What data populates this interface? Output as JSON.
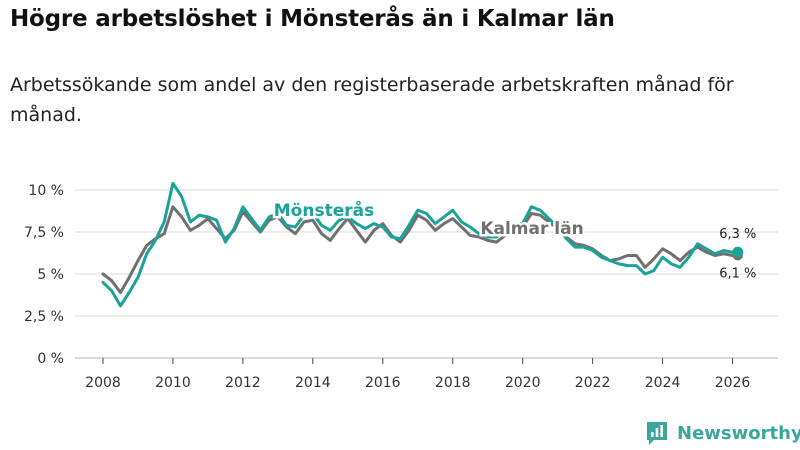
{
  "title": "Högre arbetslöshet i Mönsterås än i Kalmar län",
  "subtitle": "Arbetssökande som andel av den registerbaserade arbetskraften månad för månad.",
  "brand": {
    "name": "Newsworthy",
    "icon": "newsworthy-logo-icon",
    "color": "#3aa79a"
  },
  "chart_data": {
    "type": "line",
    "title": "Högre arbetslöshet i Mönsterås än i Kalmar län",
    "subtitle": "Arbetssökande som andel av den registerbaserade arbetskraften månad för månad.",
    "xlabel": "",
    "ylabel": "",
    "xlim": [
      2007.2,
      2027.3
    ],
    "ylim": [
      0,
      10
    ],
    "grid": true,
    "x_ticks": [
      2008,
      2010,
      2012,
      2014,
      2016,
      2018,
      2020,
      2022,
      2024,
      2026
    ],
    "x_tick_labels": [
      "2008",
      "2010",
      "2012",
      "2014",
      "2016",
      "2018",
      "2020",
      "2022",
      "2024",
      "2026"
    ],
    "y_ticks": [
      0,
      2.5,
      5,
      7.5,
      10
    ],
    "y_tick_labels": [
      "0 %",
      "2,5 %",
      "5 %",
      "7,5 %",
      "10 %"
    ],
    "series": [
      {
        "name": "Kalmar län",
        "color": "#707070",
        "label": "Kalmar län",
        "end_label": "6,1 %",
        "points": [
          [
            2008.0,
            5.0
          ],
          [
            2008.25,
            4.6
          ],
          [
            2008.5,
            3.9
          ],
          [
            2008.75,
            4.8
          ],
          [
            2009.0,
            5.8
          ],
          [
            2009.25,
            6.7
          ],
          [
            2009.5,
            7.1
          ],
          [
            2009.75,
            7.4
          ],
          [
            2010.0,
            9.0
          ],
          [
            2010.25,
            8.4
          ],
          [
            2010.5,
            7.6
          ],
          [
            2010.75,
            7.9
          ],
          [
            2011.0,
            8.3
          ],
          [
            2011.25,
            7.7
          ],
          [
            2011.5,
            7.1
          ],
          [
            2011.75,
            7.6
          ],
          [
            2012.0,
            8.7
          ],
          [
            2012.25,
            8.1
          ],
          [
            2012.5,
            7.5
          ],
          [
            2012.75,
            8.2
          ],
          [
            2013.0,
            8.4
          ],
          [
            2013.25,
            7.8
          ],
          [
            2013.5,
            7.4
          ],
          [
            2013.75,
            8.1
          ],
          [
            2014.0,
            8.2
          ],
          [
            2014.25,
            7.4
          ],
          [
            2014.5,
            7.0
          ],
          [
            2014.75,
            7.7
          ],
          [
            2015.0,
            8.3
          ],
          [
            2015.25,
            7.6
          ],
          [
            2015.5,
            6.9
          ],
          [
            2015.75,
            7.6
          ],
          [
            2016.0,
            8.0
          ],
          [
            2016.25,
            7.3
          ],
          [
            2016.5,
            6.9
          ],
          [
            2016.75,
            7.6
          ],
          [
            2017.0,
            8.5
          ],
          [
            2017.25,
            8.2
          ],
          [
            2017.5,
            7.6
          ],
          [
            2017.75,
            8.0
          ],
          [
            2018.0,
            8.3
          ],
          [
            2018.25,
            7.8
          ],
          [
            2018.5,
            7.3
          ],
          [
            2018.75,
            7.2
          ],
          [
            2019.0,
            7.0
          ],
          [
            2019.25,
            6.9
          ],
          [
            2019.5,
            7.3
          ],
          [
            2019.75,
            7.5
          ],
          [
            2020.0,
            7.8
          ],
          [
            2020.25,
            8.6
          ],
          [
            2020.5,
            8.5
          ],
          [
            2020.75,
            8.1
          ],
          [
            2021.0,
            7.7
          ],
          [
            2021.25,
            7.2
          ],
          [
            2021.5,
            6.8
          ],
          [
            2021.75,
            6.7
          ],
          [
            2022.0,
            6.5
          ],
          [
            2022.25,
            6.1
          ],
          [
            2022.5,
            5.8
          ],
          [
            2022.75,
            5.9
          ],
          [
            2023.0,
            6.1
          ],
          [
            2023.25,
            6.1
          ],
          [
            2023.5,
            5.4
          ],
          [
            2023.75,
            5.9
          ],
          [
            2024.0,
            6.5
          ],
          [
            2024.25,
            6.2
          ],
          [
            2024.5,
            5.8
          ],
          [
            2024.75,
            6.3
          ],
          [
            2025.0,
            6.6
          ],
          [
            2025.25,
            6.3
          ],
          [
            2025.5,
            6.1
          ],
          [
            2025.75,
            6.2
          ],
          [
            2026.0,
            6.1
          ],
          [
            2026.15,
            6.1
          ]
        ]
      },
      {
        "name": "Mönsterås",
        "color": "#1aa398",
        "label": "Mönsterås",
        "end_label": "6,3 %",
        "points": [
          [
            2008.0,
            4.5
          ],
          [
            2008.25,
            4.0
          ],
          [
            2008.5,
            3.1
          ],
          [
            2008.75,
            3.9
          ],
          [
            2009.0,
            4.8
          ],
          [
            2009.25,
            6.2
          ],
          [
            2009.5,
            7.0
          ],
          [
            2009.75,
            8.1
          ],
          [
            2010.0,
            10.4
          ],
          [
            2010.25,
            9.6
          ],
          [
            2010.5,
            8.1
          ],
          [
            2010.75,
            8.5
          ],
          [
            2011.0,
            8.4
          ],
          [
            2011.25,
            8.2
          ],
          [
            2011.5,
            6.9
          ],
          [
            2011.75,
            7.7
          ],
          [
            2012.0,
            9.0
          ],
          [
            2012.25,
            8.3
          ],
          [
            2012.5,
            7.6
          ],
          [
            2012.75,
            8.4
          ],
          [
            2013.0,
            8.6
          ],
          [
            2013.25,
            7.9
          ],
          [
            2013.5,
            7.8
          ],
          [
            2013.75,
            8.5
          ],
          [
            2014.0,
            8.6
          ],
          [
            2014.25,
            7.9
          ],
          [
            2014.5,
            7.6
          ],
          [
            2014.75,
            8.2
          ],
          [
            2015.0,
            8.4
          ],
          [
            2015.25,
            8.0
          ],
          [
            2015.5,
            7.7
          ],
          [
            2015.75,
            8.0
          ],
          [
            2016.0,
            7.8
          ],
          [
            2016.25,
            7.2
          ],
          [
            2016.5,
            7.1
          ],
          [
            2016.75,
            7.9
          ],
          [
            2017.0,
            8.8
          ],
          [
            2017.25,
            8.6
          ],
          [
            2017.5,
            8.0
          ],
          [
            2017.75,
            8.4
          ],
          [
            2018.0,
            8.8
          ],
          [
            2018.25,
            8.1
          ],
          [
            2018.5,
            7.8
          ],
          [
            2018.75,
            7.4
          ],
          [
            2019.0,
            7.2
          ],
          [
            2019.25,
            7.2
          ],
          [
            2019.5,
            7.6
          ],
          [
            2019.75,
            8.0
          ],
          [
            2020.0,
            8.0
          ],
          [
            2020.25,
            9.0
          ],
          [
            2020.5,
            8.8
          ],
          [
            2020.75,
            8.3
          ],
          [
            2021.0,
            7.8
          ],
          [
            2021.25,
            7.1
          ],
          [
            2021.5,
            6.6
          ],
          [
            2021.75,
            6.6
          ],
          [
            2022.0,
            6.4
          ],
          [
            2022.25,
            6.0
          ],
          [
            2022.5,
            5.8
          ],
          [
            2022.75,
            5.6
          ],
          [
            2023.0,
            5.5
          ],
          [
            2023.25,
            5.5
          ],
          [
            2023.5,
            5.0
          ],
          [
            2023.75,
            5.2
          ],
          [
            2024.0,
            6.0
          ],
          [
            2024.25,
            5.6
          ],
          [
            2024.5,
            5.4
          ],
          [
            2024.75,
            6.0
          ],
          [
            2025.0,
            6.8
          ],
          [
            2025.25,
            6.5
          ],
          [
            2025.5,
            6.2
          ],
          [
            2025.75,
            6.4
          ],
          [
            2026.0,
            6.3
          ],
          [
            2026.15,
            6.3
          ]
        ]
      }
    ]
  }
}
